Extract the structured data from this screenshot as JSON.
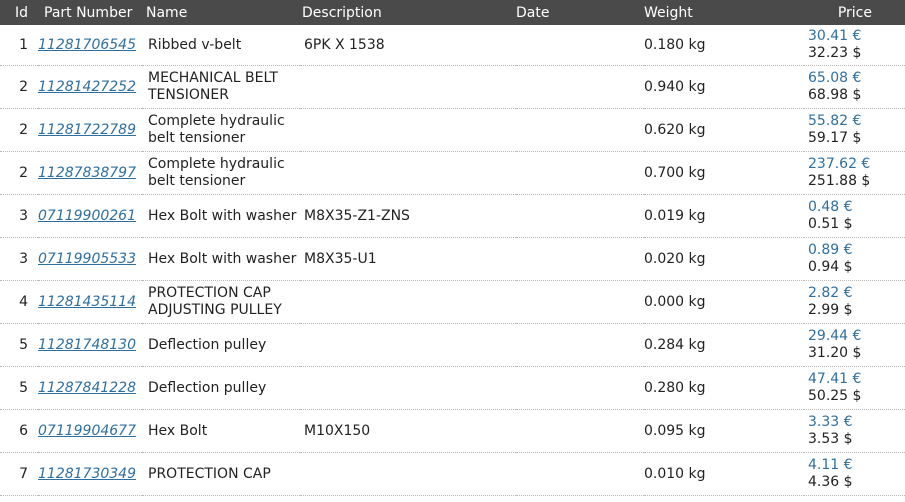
{
  "table": {
    "headers": {
      "id": "Id",
      "part_number": "Part Number",
      "name": "Name",
      "description": "Description",
      "date": "Date",
      "weight": "Weight",
      "price": "Price"
    },
    "rows": [
      {
        "id": "1",
        "part_number": "11281706545",
        "name": "Ribbed v-belt",
        "description": "6PK X 1538",
        "date": "",
        "weight": "0.180 kg",
        "price_eur": "30.41 €",
        "price_usd": "32.23 $"
      },
      {
        "id": "2",
        "part_number": "11281427252",
        "name": "MECHANICAL BELT TENSIONER",
        "description": "",
        "date": "",
        "weight": "0.940 kg",
        "price_eur": "65.08 €",
        "price_usd": "68.98 $"
      },
      {
        "id": "2",
        "part_number": "11281722789",
        "name": "Complete hydraulic belt tensioner",
        "description": "",
        "date": "",
        "weight": "0.620 kg",
        "price_eur": "55.82 €",
        "price_usd": "59.17 $"
      },
      {
        "id": "2",
        "part_number": "11287838797",
        "name": "Complete hydraulic belt tensioner",
        "description": "",
        "date": "",
        "weight": "0.700 kg",
        "price_eur": "237.62 €",
        "price_usd": "251.88 $"
      },
      {
        "id": "3",
        "part_number": "07119900261",
        "name": "Hex Bolt with washer",
        "description": "M8X35-Z1-ZNS",
        "date": "",
        "weight": "0.019 kg",
        "price_eur": "0.48 €",
        "price_usd": "0.51 $"
      },
      {
        "id": "3",
        "part_number": "07119905533",
        "name": "Hex Bolt with washer",
        "description": "M8X35-U1",
        "date": "",
        "weight": "0.020 kg",
        "price_eur": "0.89 €",
        "price_usd": "0.94 $"
      },
      {
        "id": "4",
        "part_number": "11281435114",
        "name": "PROTECTION CAP ADJUSTING PULLEY",
        "description": "",
        "date": "",
        "weight": "0.000 kg",
        "price_eur": "2.82 €",
        "price_usd": "2.99 $"
      },
      {
        "id": "5",
        "part_number": "11281748130",
        "name": "Deflection pulley",
        "description": "",
        "date": "",
        "weight": "0.284 kg",
        "price_eur": "29.44 €",
        "price_usd": "31.20 $"
      },
      {
        "id": "5",
        "part_number": "11287841228",
        "name": "Deflection pulley",
        "description": "",
        "date": "",
        "weight": "0.280 kg",
        "price_eur": "47.41 €",
        "price_usd": "50.25 $"
      },
      {
        "id": "6",
        "part_number": "07119904677",
        "name": "Hex Bolt",
        "description": "M10X150",
        "date": "",
        "weight": "0.095 kg",
        "price_eur": "3.33 €",
        "price_usd": "3.53 $"
      },
      {
        "id": "7",
        "part_number": "11281730349",
        "name": "PROTECTION CAP",
        "description": "",
        "date": "",
        "weight": "0.010 kg",
        "price_eur": "4.11 €",
        "price_usd": "4.36 $"
      }
    ]
  }
}
